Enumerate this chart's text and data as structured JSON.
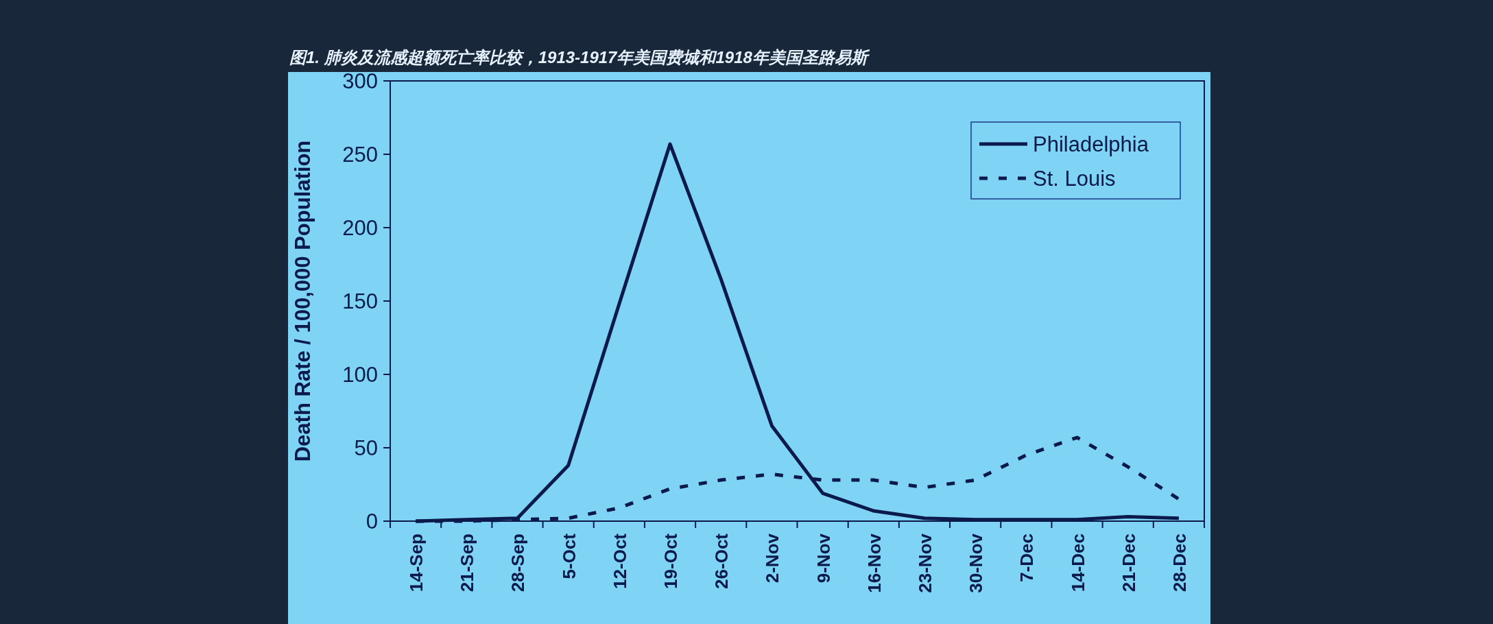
{
  "chart_data": {
    "type": "line",
    "title": "图1. 肺炎及流感超额死亡率比较，1913-1917年美国费城和1918年美国圣路易斯",
    "ylabel": "Death Rate / 100,000 Population",
    "categories": [
      "14-Sep",
      "21-Sep",
      "28-Sep",
      "5-Oct",
      "12-Oct",
      "19-Oct",
      "26-Oct",
      "2-Nov",
      "9-Nov",
      "16-Nov",
      "23-Nov",
      "30-Nov",
      "7-Dec",
      "14-Dec",
      "21-Dec",
      "28-Dec"
    ],
    "series": [
      {
        "name": "Philadelphia",
        "color": "#0b1a4a",
        "line_style": "solid",
        "values": [
          0,
          1,
          2,
          38,
          148,
          257,
          165,
          65,
          19,
          7,
          2,
          1,
          1,
          1,
          3,
          2
        ]
      },
      {
        "name": "St. Louis",
        "color": "#0b1a4a",
        "line_style": "dashed",
        "values": [
          0,
          0,
          1,
          2,
          9,
          22,
          28,
          32,
          28,
          28,
          23,
          28,
          45,
          57,
          37,
          15
        ]
      }
    ],
    "ylim": [
      0,
      300
    ],
    "yticks": [
      0,
      50,
      100,
      150,
      200,
      250,
      300
    ],
    "legend": "top right",
    "marker": "none"
  }
}
